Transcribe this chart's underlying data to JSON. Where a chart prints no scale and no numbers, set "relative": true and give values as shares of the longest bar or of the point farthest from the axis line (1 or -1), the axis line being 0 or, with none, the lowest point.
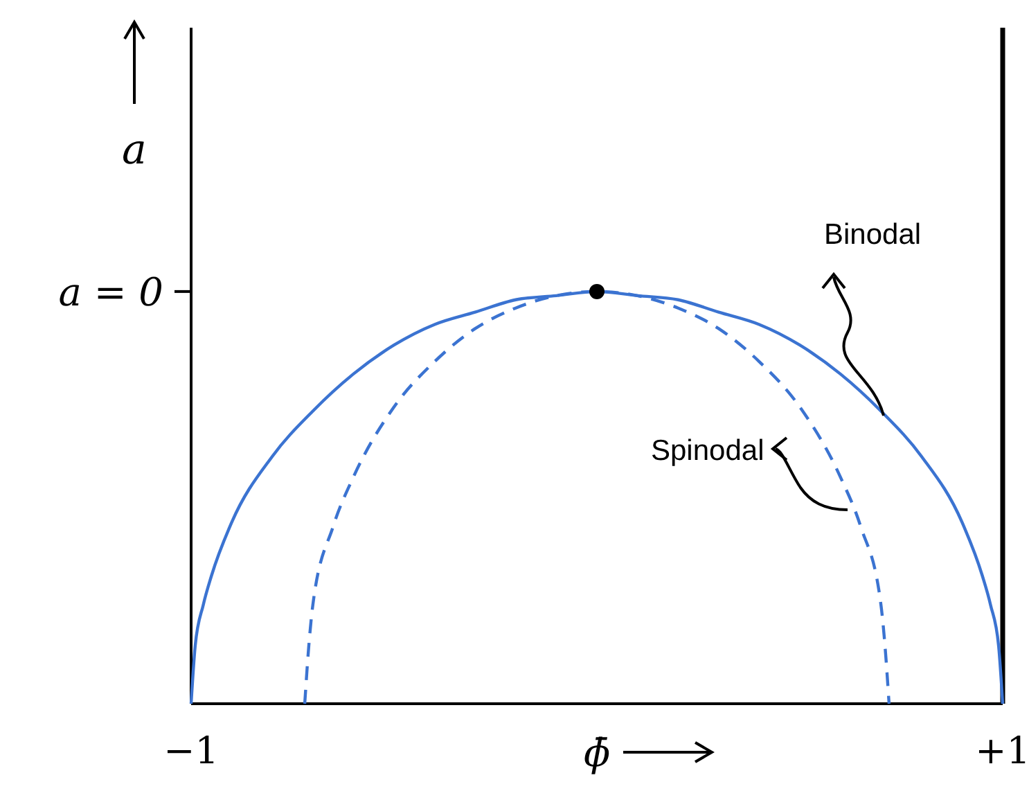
{
  "chart_data": {
    "type": "line",
    "relative": true,
    "xlabel": "ϕ̄",
    "ylabel": "a",
    "xlim": [
      -1,
      1
    ],
    "xticks": [
      {
        "value": -1,
        "label": "−1"
      },
      {
        "value": 1,
        "label": "+1"
      }
    ],
    "tick_labels": "x",
    "annotations": [
      "a = 0"
    ],
    "series": [
      {
        "name": "Binodal",
        "color": "#3b73d1",
        "line_style": "solid",
        "x": [
          -1,
          -0.99,
          -0.97,
          -0.95,
          -0.9,
          -0.8,
          -0.7,
          -0.6,
          -0.5,
          -0.4,
          -0.3,
          -0.2,
          -0.1,
          0,
          0.1,
          0.2,
          0.3,
          0.4,
          0.5,
          0.6,
          0.7,
          0.8,
          0.9,
          0.95,
          0.97,
          0.99,
          1
        ],
        "values": [
          0,
          0.14,
          0.24,
          0.31,
          0.44,
          0.6,
          0.71,
          0.8,
          0.87,
          0.92,
          0.95,
          0.98,
          0.99,
          1,
          0.99,
          0.98,
          0.95,
          0.92,
          0.87,
          0.8,
          0.71,
          0.6,
          0.44,
          0.31,
          0.24,
          0.14,
          0
        ]
      },
      {
        "name": "Spinodal",
        "color": "#3b73d1",
        "line_style": "dashed",
        "x": [
          -0.72,
          -0.71,
          -0.7,
          -0.65,
          -0.6,
          -0.5,
          -0.4,
          -0.3,
          -0.2,
          -0.1,
          0,
          0.1,
          0.2,
          0.3,
          0.4,
          0.5,
          0.6,
          0.65,
          0.7,
          0.71,
          0.72
        ],
        "values": [
          0,
          0.14,
          0.24,
          0.43,
          0.55,
          0.72,
          0.83,
          0.91,
          0.96,
          0.99,
          1,
          0.99,
          0.96,
          0.91,
          0.83,
          0.72,
          0.55,
          0.43,
          0.24,
          0.14,
          0
        ]
      },
      {
        "type": "scatter",
        "color": "#000000",
        "marker": "circle",
        "x": [
          0
        ],
        "values": [
          1
        ]
      }
    ]
  }
}
